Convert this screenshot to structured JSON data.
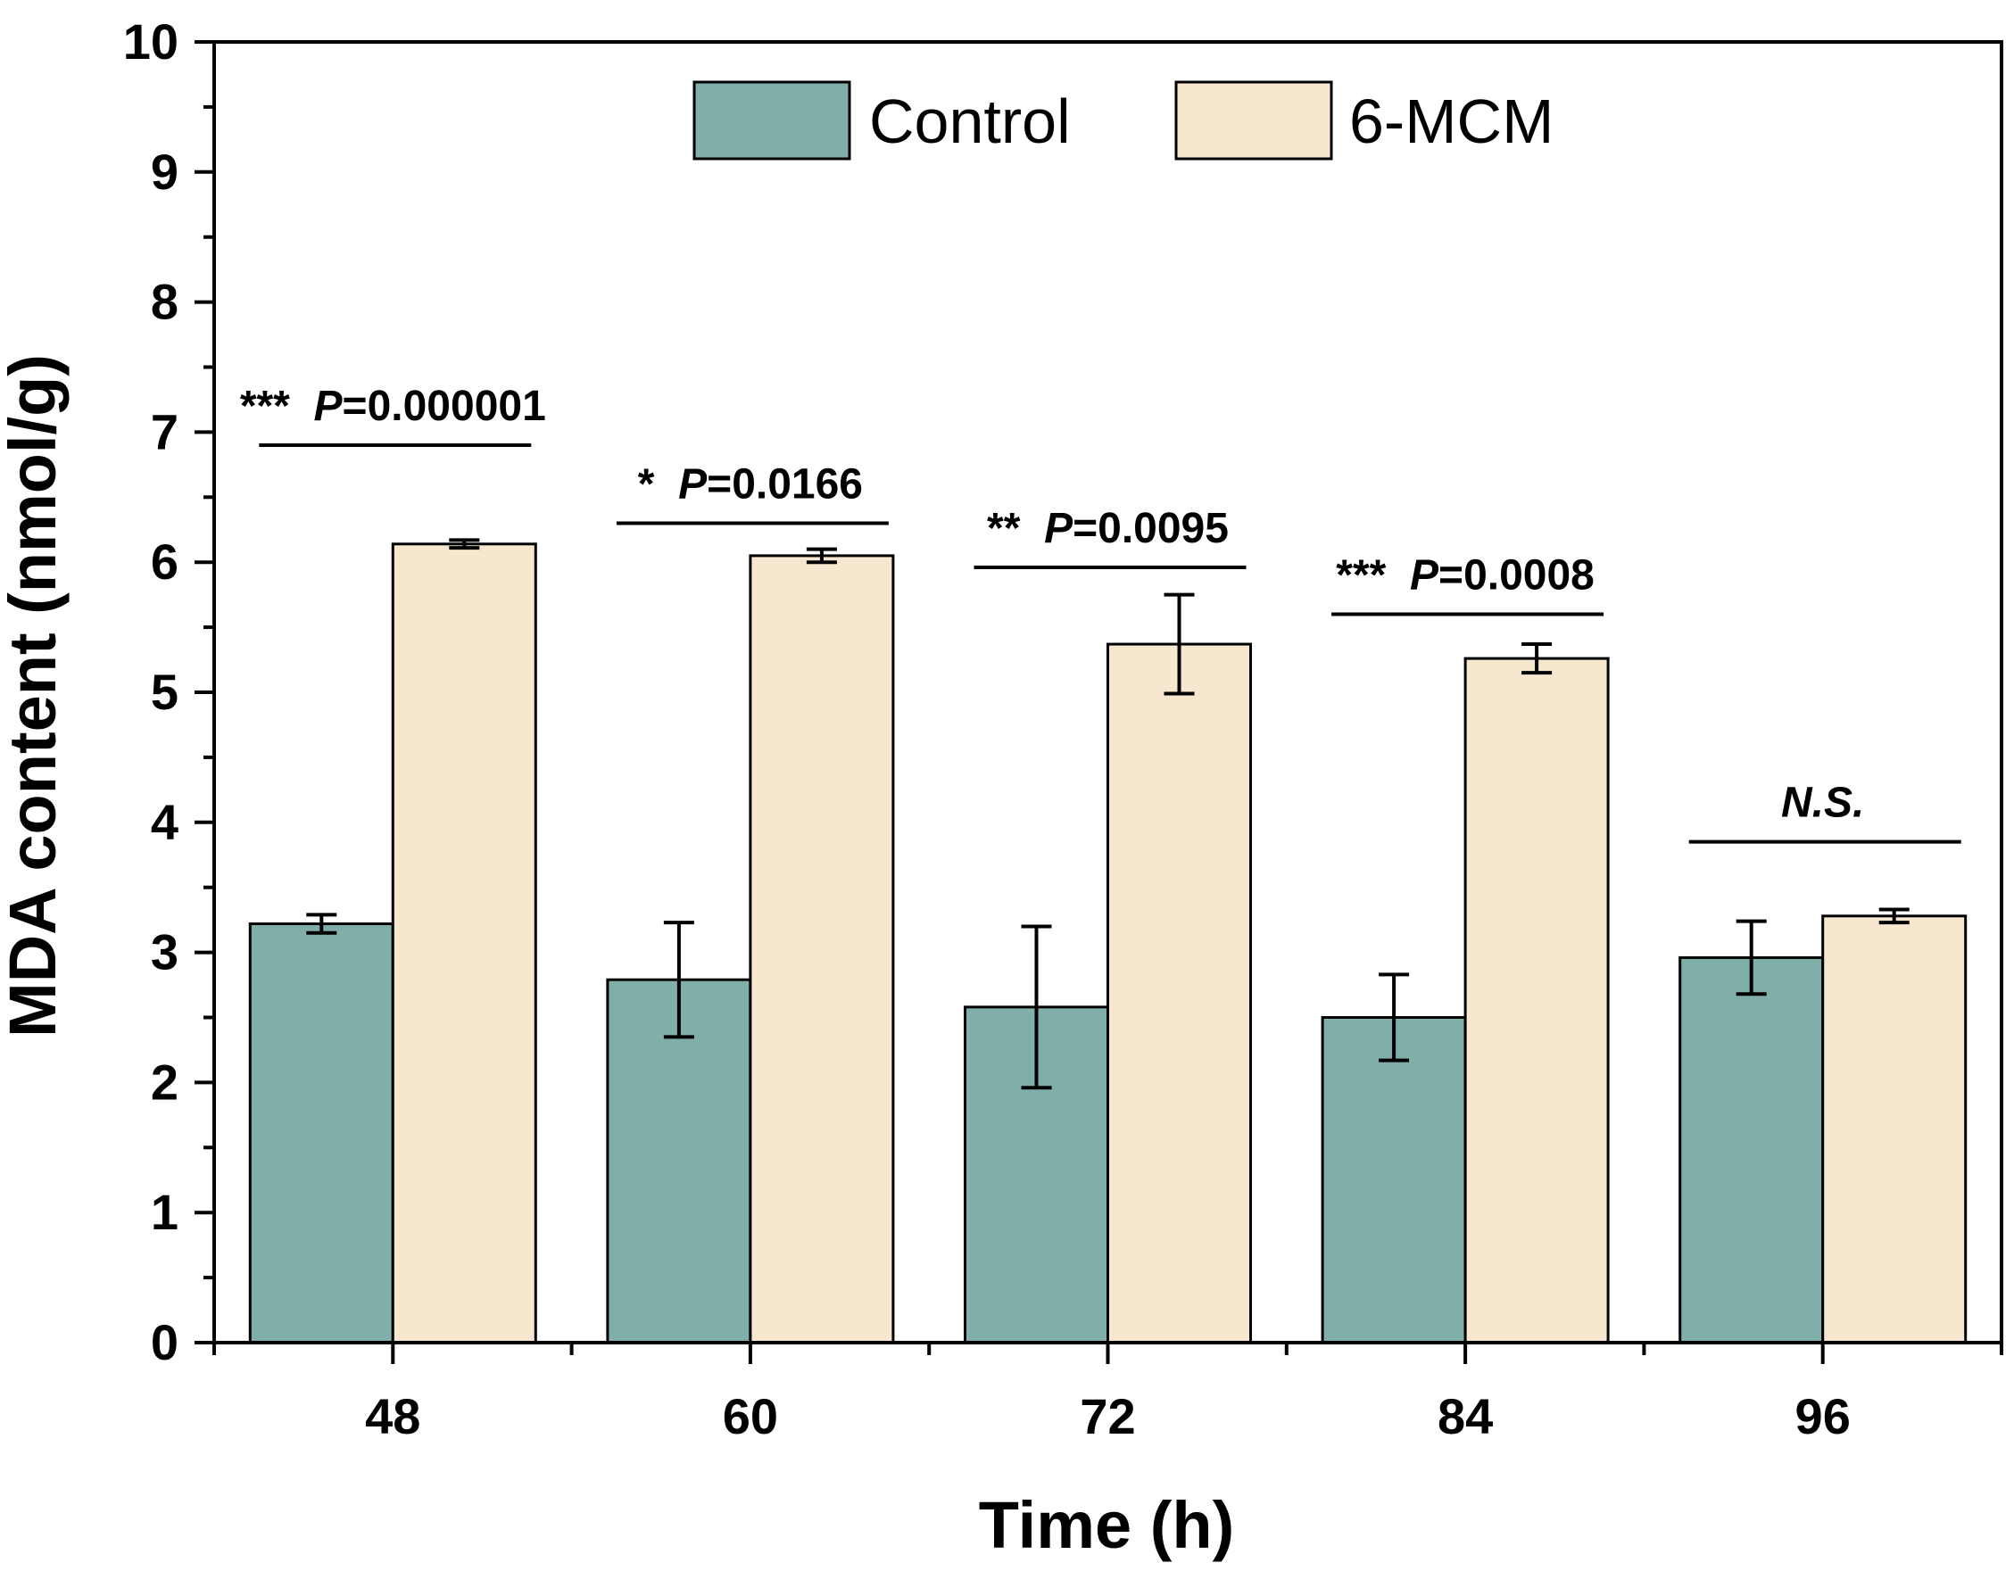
{
  "chart_data": {
    "type": "bar",
    "xlabel": "Time (h)",
    "ylabel": "MDA content (nmol/g)",
    "ylim": [
      0,
      10
    ],
    "yticks": [
      "0",
      "1",
      "2",
      "3",
      "4",
      "5",
      "6",
      "7",
      "8",
      "9",
      "10"
    ],
    "categories": [
      "48",
      "60",
      "72",
      "84",
      "96"
    ],
    "series": [
      {
        "name": "Control",
        "color": "#80AFAA",
        "values": [
          3.22,
          2.79,
          2.58,
          2.5,
          2.96
        ],
        "errors": [
          0.07,
          0.44,
          0.62,
          0.33,
          0.28
        ]
      },
      {
        "name": "6-MCM",
        "color": "#F8E7CF",
        "values": [
          6.14,
          6.05,
          5.37,
          5.26,
          3.28
        ],
        "errors": [
          0.03,
          0.05,
          0.38,
          0.11,
          0.05
        ]
      }
    ],
    "legend": {
      "position": "top-center"
    },
    "annotations": [
      {
        "stars": "***",
        "p_label": "P",
        "p_value": "=0.000001",
        "y": 6.9
      },
      {
        "stars": "*",
        "p_label": "P",
        "p_value": "=0.0166",
        "y": 6.3
      },
      {
        "stars": "**",
        "p_label": "P",
        "p_value": "=0.0095",
        "y": 5.96
      },
      {
        "stars": "***",
        "p_label": "P",
        "p_value": "=0.0008",
        "y": 5.6
      },
      {
        "stars": "",
        "p_label": "N.S.",
        "p_value": "",
        "y": 3.85
      }
    ]
  }
}
